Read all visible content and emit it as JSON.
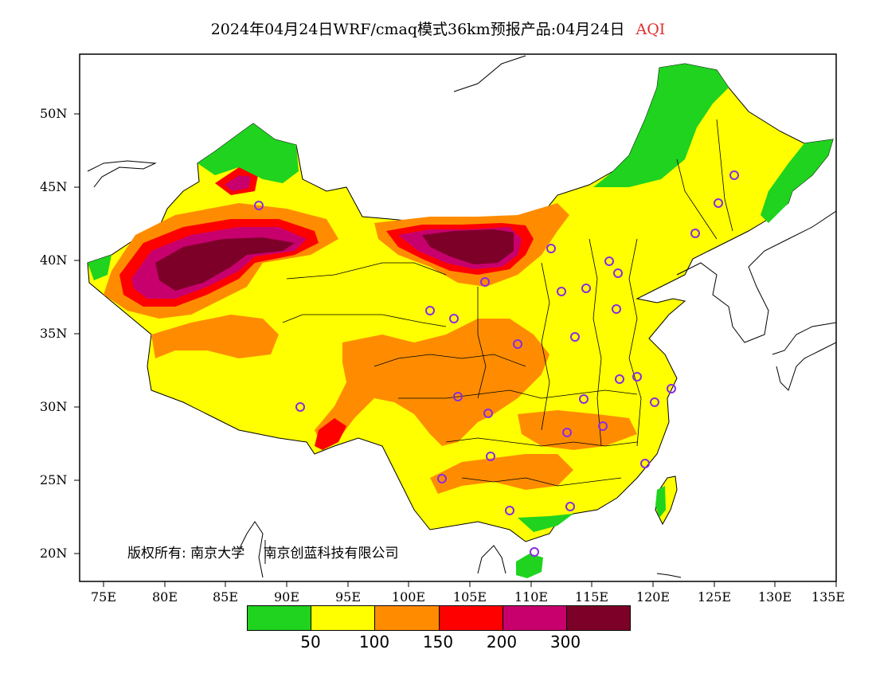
{
  "title": {
    "main": "2024年04月24日WRF/cmaq模式36km预报产品:04月24日",
    "variable": "AQI"
  },
  "map": {
    "lat_labels": [
      "50N",
      "45N",
      "40N",
      "35N",
      "30N",
      "25N",
      "20N"
    ],
    "lon_labels": [
      "75E",
      "80E",
      "85E",
      "90E",
      "95E",
      "100E",
      "105E",
      "110E",
      "115E",
      "120E",
      "125E",
      "130E",
      "135E"
    ]
  },
  "copyright": {
    "part1": "版权所有: 南京大学",
    "part2": "南京创蓝科技有限公司"
  },
  "legend": {
    "colors": [
      "#1fd31f",
      "#ffff00",
      "#ff8c00",
      "#ff0000",
      "#c8006e",
      "#7d0028"
    ],
    "labels": [
      "50",
      "100",
      "150",
      "200",
      "300"
    ]
  },
  "colors": {
    "good": "#1fd31f",
    "moderate": "#ffff00",
    "unhealthy_sensitive": "#ff8c00",
    "unhealthy": "#ff0000",
    "very_unhealthy": "#c8006e",
    "hazardous": "#7d0028",
    "station_marker": "#8a2be2"
  }
}
